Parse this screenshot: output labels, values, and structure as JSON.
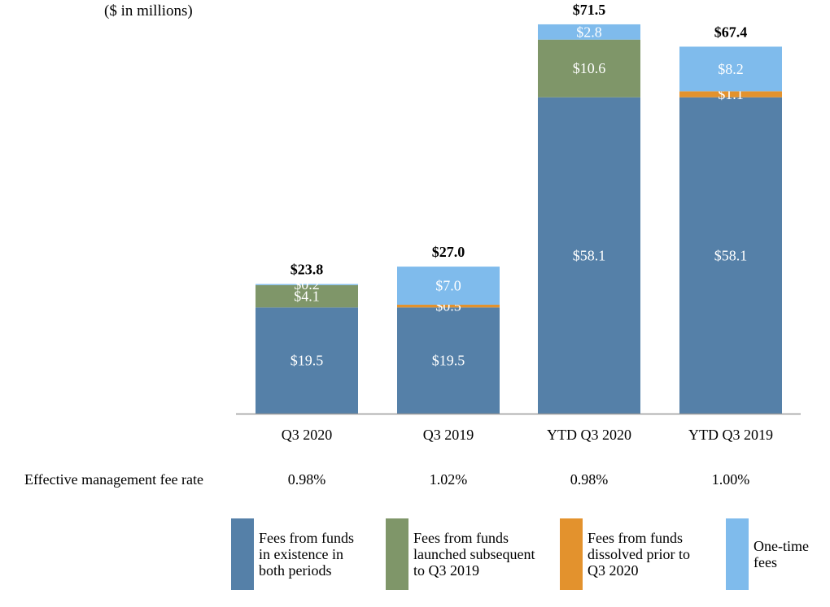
{
  "unit_label": "($ in millions)",
  "chart_data": {
    "type": "bar",
    "stacked": true,
    "title": "",
    "xlabel": "",
    "ylabel": "",
    "ylim": [
      0,
      75
    ],
    "grid": false,
    "categories": [
      "Q3 2020",
      "Q3 2019",
      "YTD Q3 2020",
      "YTD Q3 2019"
    ],
    "totals": [
      "$23.8",
      "$27.0",
      "$71.5",
      "$67.4"
    ],
    "series": [
      {
        "name": "Fees from funds in existence in both periods",
        "color": "#5580a8",
        "values": [
          19.5,
          19.5,
          58.1,
          58.1
        ],
        "labels": [
          "$19.5",
          "$19.5",
          "$58.1",
          "$58.1"
        ]
      },
      {
        "name": "Fees from funds launched subsequent to Q3 2019",
        "color": "#7f9669",
        "values": [
          4.1,
          0,
          10.6,
          0
        ],
        "labels": [
          "$4.1",
          "",
          "$10.6",
          ""
        ]
      },
      {
        "name": "Fees from funds dissolved prior to Q3 2020",
        "color": "#e3922d",
        "values": [
          0,
          0.5,
          0,
          1.1
        ],
        "labels": [
          "",
          "$0.5",
          "",
          "$1.1"
        ]
      },
      {
        "name": "One-time fees",
        "color": "#7fbbec",
        "values": [
          0.2,
          7.0,
          2.8,
          8.2
        ],
        "labels": [
          "$0.2",
          "$7.0",
          "$2.8",
          "$8.2"
        ]
      }
    ]
  },
  "rates": {
    "label": "Effective management fee rate",
    "values": [
      "0.98%",
      "1.02%",
      "0.98%",
      "1.00%"
    ]
  },
  "legend": [
    {
      "lines": [
        "Fees from funds",
        "in existence in",
        "both periods"
      ],
      "color": "#5580a8"
    },
    {
      "lines": [
        "Fees from funds",
        "launched subsequent",
        "to Q3 2019"
      ],
      "color": "#7f9669"
    },
    {
      "lines": [
        "Fees from funds",
        "dissolved prior to",
        "Q3 2020"
      ],
      "color": "#e3922d"
    },
    {
      "lines": [
        "One-time",
        "fees"
      ],
      "color": "#7fbbec"
    }
  ]
}
